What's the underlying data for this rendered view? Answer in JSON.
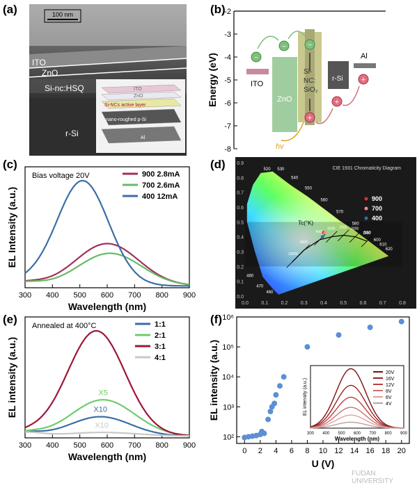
{
  "panel_labels": {
    "a": "(a)",
    "b": "(b)",
    "c": "(c)",
    "d": "(d)",
    "e": "(e)",
    "f": "(f)"
  },
  "panel_a": {
    "scale_bar": "100 nm",
    "layers": [
      "ITO",
      "ZnO",
      "Si-nc:HSQ",
      "r-Si"
    ],
    "inset_layers": [
      "ITO",
      "ZnO",
      "Si-NCs active layer",
      "nano-roughed p-Si",
      "Al"
    ]
  },
  "chart_data": [
    {
      "type": "band-diagram",
      "panel": "b",
      "ylabel": "Energy (eV)",
      "ylim": [
        -8,
        -2
      ],
      "yticks": [
        -2,
        -3,
        -4,
        -5,
        -6,
        -7,
        -8
      ],
      "labels": {
        "ito": "ITO",
        "zno": "ZnO",
        "sinc": "Si-\nNC:\nSiO₂",
        "rsi": "r-Si",
        "al": "Al",
        "hv": "hv",
        "electron": "−",
        "hole": "+"
      }
    },
    {
      "type": "line",
      "panel": "c",
      "annotation": "Bias voltage  20V",
      "xlabel": "Wavelength (nm)",
      "ylabel": "EL Intensity (a.u.)",
      "xlim": [
        300,
        900
      ],
      "xticks": [
        300,
        400,
        500,
        600,
        700,
        800,
        900
      ],
      "series": [
        {
          "name": "900  2.8mA",
          "color": "#a0305a",
          "peak_x": 600,
          "width": 115,
          "peak_y": 0.35
        },
        {
          "name": "700   2.6mA",
          "color": "#66bb66",
          "peak_x": 610,
          "width": 115,
          "peak_y": 0.27
        },
        {
          "name": "400   12mA",
          "color": "#3a6ea5",
          "peak_x": 510,
          "width": 95,
          "peak_y": 0.87
        }
      ]
    },
    {
      "type": "scatter",
      "panel": "d",
      "title": "CIE 1931 Chromaticity Diagram",
      "xlim": [
        0,
        0.8
      ],
      "ylim": [
        0,
        0.9
      ],
      "xticks": [
        "0.0",
        "0.1",
        "0.2",
        "0.3",
        "0.4",
        "0.5",
        "0.6",
        "0.7",
        "0.8"
      ],
      "yticks": [
        "0.0",
        "0.1",
        "0.2",
        "0.3",
        "0.4",
        "0.5",
        "0.6",
        "0.7",
        "0.8",
        "0.9"
      ],
      "locus_labels": [
        "520",
        "530",
        "540",
        "550",
        "560",
        "570",
        "580",
        "590",
        "600",
        "610",
        "620",
        "480",
        "470",
        "460"
      ],
      "tc_label": "Tc(°K)",
      "tc_labels": [
        "1500",
        "2000",
        "2500",
        "3000",
        "4000",
        "6000",
        "10000"
      ],
      "points": [
        {
          "name": "900",
          "x": 0.4,
          "y": 0.43,
          "color": "#e03030"
        },
        {
          "name": "700",
          "x": 0.4,
          "y": 0.43,
          "color": "#ff8a8a"
        },
        {
          "name": "400",
          "x": 0.38,
          "y": 0.4,
          "color": "#3a6ea5"
        }
      ]
    },
    {
      "type": "line",
      "panel": "e",
      "annotation": "Annealed at 400°C",
      "xlabel": "Wavelength (nm)",
      "ylabel": "EL intensity (a.u.)",
      "xlim": [
        300,
        900
      ],
      "xticks": [
        300,
        400,
        500,
        600,
        700,
        800,
        900
      ],
      "series": [
        {
          "name": "1:1",
          "color": "#3a6ea5",
          "peak_x": 575,
          "width": 110,
          "peak_y": 0.16,
          "label": "X10"
        },
        {
          "name": "2:1",
          "color": "#6dcc6d",
          "peak_x": 585,
          "width": 115,
          "peak_y": 0.3,
          "label": "X5"
        },
        {
          "name": "3:1",
          "color": "#a01535",
          "peak_x": 560,
          "width": 105,
          "peak_y": 0.87,
          "label": ""
        },
        {
          "name": "4:1",
          "color": "#c8c8c8",
          "peak_x": 580,
          "width": 130,
          "peak_y": 0.03,
          "label": "X10"
        }
      ]
    },
    {
      "type": "scatter",
      "panel": "f",
      "xlabel": "U (V)",
      "ylabel": "EL intensity (a.u.)",
      "xlim": [
        -1,
        21
      ],
      "yscale": "log",
      "ylim": [
        60,
        1000000
      ],
      "xticks": [
        0,
        2,
        4,
        6,
        8,
        10,
        12,
        14,
        16,
        18,
        20
      ],
      "yticks": [
        {
          "v": 100,
          "t": "10²"
        },
        {
          "v": 1000,
          "t": "10³"
        },
        {
          "v": 10000,
          "t": "10⁴"
        },
        {
          "v": 100000,
          "t": "10⁵"
        },
        {
          "v": 1000000,
          "t": "10⁶"
        }
      ],
      "x": [
        0,
        0.5,
        1,
        1.5,
        2,
        2.2,
        2.5,
        3,
        3.3,
        3.5,
        3.8,
        4,
        4.5,
        5,
        8,
        12,
        16,
        20
      ],
      "y": [
        95,
        100,
        105,
        110,
        120,
        150,
        130,
        380,
        700,
        1000,
        1300,
        2500,
        5000,
        10000,
        100000,
        250000,
        450000,
        700000
      ],
      "inset": {
        "xlabel": "Wavelength (nm)",
        "ylabel": "EL intensity (a.u.)",
        "xticks": [
          300,
          400,
          500,
          600,
          700,
          800,
          900
        ],
        "series": [
          {
            "name": "20V",
            "color": "#7a1010",
            "peak": 1.0
          },
          {
            "name": "16V",
            "color": "#9a2020",
            "peak": 0.72
          },
          {
            "name": "12V",
            "color": "#b94040",
            "peak": 0.52
          },
          {
            "name": "8V",
            "color": "#d07070",
            "peak": 0.35
          },
          {
            "name": "6V",
            "color": "#e2a0a0",
            "peak": 0.22
          },
          {
            "name": "4V",
            "color": "#b8a0a0",
            "peak": 0.1
          }
        ]
      }
    }
  ],
  "watermark": "FUDAN UNIVERSITY"
}
